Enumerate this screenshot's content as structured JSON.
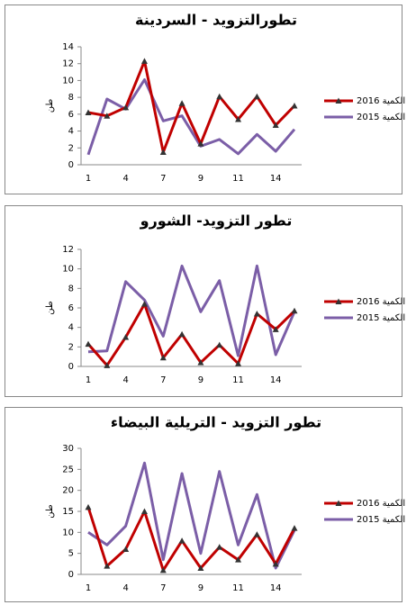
{
  "chart_data": [
    {
      "type": "line",
      "title": "تطورالتزويد - السردينة",
      "y_label": "طن",
      "categories": [
        "1",
        null,
        "4",
        null,
        "7",
        null,
        "9",
        null,
        "11",
        null,
        "14",
        null
      ],
      "series": [
        {
          "name": "2016 الكمية",
          "color": "#c00000",
          "values": [
            6.2,
            5.8,
            6.8,
            12.3,
            1.5,
            7.3,
            2.5,
            8.1,
            5.4,
            8.1,
            4.7,
            7.0
          ]
        },
        {
          "name": "2015 الكمية",
          "color": "#7b5ea7",
          "values": [
            1.2,
            7.8,
            6.6,
            10.1,
            5.2,
            5.8,
            2.2,
            3.0,
            1.3,
            3.6,
            1.6,
            4.2
          ]
        }
      ],
      "ylim": [
        0,
        14
      ],
      "yticks": [
        0,
        2,
        4,
        6,
        8,
        10,
        12,
        14
      ]
    },
    {
      "type": "line",
      "title": "تطور التزويد- الشورو",
      "y_label": "طن",
      "categories": [
        "1",
        null,
        "4",
        null,
        "7",
        null,
        "9",
        null,
        "11",
        null,
        "14",
        null
      ],
      "series": [
        {
          "name": "2016 الكمية",
          "color": "#c00000",
          "values": [
            2.3,
            0.1,
            3.0,
            6.4,
            0.9,
            3.3,
            0.4,
            2.2,
            0.3,
            5.4,
            3.8,
            5.7
          ]
        },
        {
          "name": "2015 الكمية",
          "color": "#7b5ea7",
          "values": [
            1.5,
            1.6,
            8.7,
            6.8,
            3.1,
            10.3,
            5.6,
            8.8,
            1.1,
            10.3,
            1.2,
            5.6
          ]
        }
      ],
      "ylim": [
        0,
        12
      ],
      "yticks": [
        0,
        2,
        4,
        6,
        8,
        10,
        12
      ]
    },
    {
      "type": "line",
      "title": "تطور التزويد - التريلية البيضاء",
      "y_label": "طن",
      "categories": [
        "1",
        null,
        "4",
        null,
        "7",
        null,
        "9",
        null,
        "11",
        null,
        "14",
        null
      ],
      "series": [
        {
          "name": "2016 الكمية",
          "color": "#c00000",
          "values": [
            16,
            2,
            6,
            15,
            1,
            8,
            1.5,
            6.5,
            3.5,
            9.5,
            2.5,
            11
          ]
        },
        {
          "name": "2015 الكمية",
          "color": "#7b5ea7",
          "values": [
            10,
            7,
            11.5,
            26.5,
            3.5,
            24,
            5,
            24.5,
            7,
            19,
            1.5,
            10.5
          ]
        }
      ],
      "ylim": [
        0,
        30
      ],
      "yticks": [
        0,
        5,
        10,
        15,
        20,
        25,
        30
      ]
    }
  ]
}
